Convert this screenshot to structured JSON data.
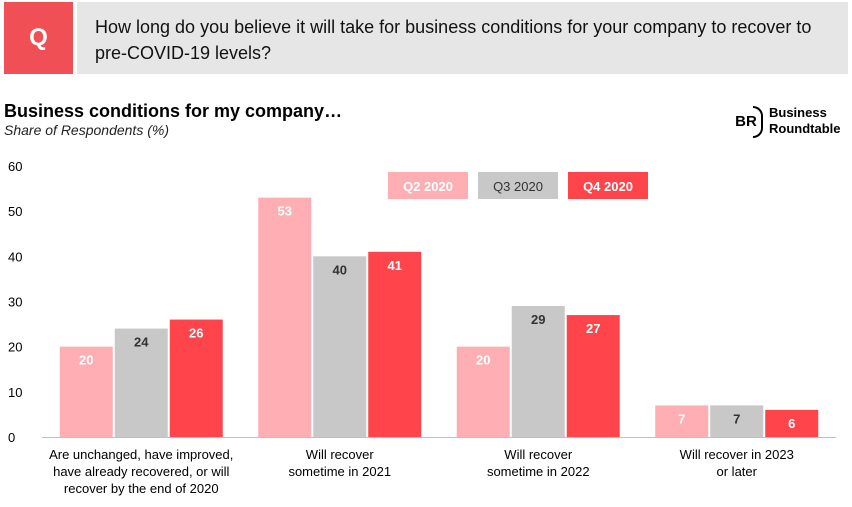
{
  "question": {
    "badge": "Q",
    "text": "How long do you believe it will take for business conditions for your company to recover to pre-COVID-19 levels?"
  },
  "logo": {
    "mark": "BR",
    "line1": "Business",
    "line2": "Roundtable"
  },
  "chart_data": {
    "type": "bar",
    "title": "Business conditions for my company…",
    "subtitle": "Share of Respondents (%)",
    "xlabel": "",
    "ylabel": "",
    "ylim": [
      0,
      60
    ],
    "yticks": [
      0,
      10,
      20,
      30,
      40,
      50,
      60
    ],
    "grid": false,
    "legend_position": "top-right",
    "categories": [
      [
        "Are unchanged, have improved,",
        "have already recovered, or will",
        "recover by the end of 2020"
      ],
      [
        "Will recover",
        "sometime in 2021"
      ],
      [
        "Will recover",
        "sometime in 2022"
      ],
      [
        "Will recover in 2023",
        "or later"
      ]
    ],
    "series": [
      {
        "name": "Q2 2020",
        "color": "#ffafb3",
        "label_color": "#ffffff",
        "values": [
          20,
          53,
          20,
          7
        ]
      },
      {
        "name": "Q3 2020",
        "color": "#c8c8c8",
        "label_color": "#333333",
        "values": [
          24,
          40,
          29,
          7
        ]
      },
      {
        "name": "Q4 2020",
        "color": "#ff444c",
        "label_color": "#ffffff",
        "values": [
          26,
          41,
          27,
          6
        ]
      }
    ]
  }
}
